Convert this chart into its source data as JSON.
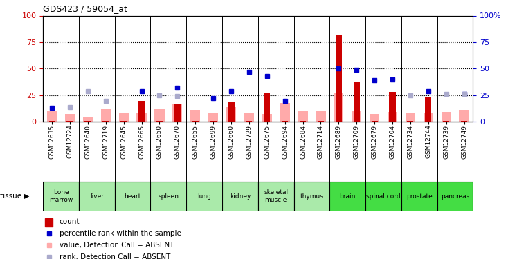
{
  "title": "GDS423 / 59054_at",
  "samples": [
    "GSM12635",
    "GSM12724",
    "GSM12640",
    "GSM12719",
    "GSM12645",
    "GSM12665",
    "GSM12650",
    "GSM12670",
    "GSM12655",
    "GSM12699",
    "GSM12660",
    "GSM12729",
    "GSM12675",
    "GSM12694",
    "GSM12684",
    "GSM12714",
    "GSM12689",
    "GSM12709",
    "GSM12679",
    "GSM12704",
    "GSM12734",
    "GSM12744",
    "GSM12739",
    "GSM12749"
  ],
  "tissues": [
    {
      "name": "bone\nmarrow",
      "span": [
        0,
        1
      ],
      "color": "#aaeaaa"
    },
    {
      "name": "liver",
      "span": [
        2,
        3
      ],
      "color": "#aaeaaa"
    },
    {
      "name": "heart",
      "span": [
        4,
        5
      ],
      "color": "#aaeaaa"
    },
    {
      "name": "spleen",
      "span": [
        6,
        7
      ],
      "color": "#aaeaaa"
    },
    {
      "name": "lung",
      "span": [
        8,
        9
      ],
      "color": "#aaeaaa"
    },
    {
      "name": "kidney",
      "span": [
        10,
        11
      ],
      "color": "#aaeaaa"
    },
    {
      "name": "skeletal\nmuscle",
      "span": [
        12,
        13
      ],
      "color": "#aaeaaa"
    },
    {
      "name": "thymus",
      "span": [
        14,
        15
      ],
      "color": "#aaeaaa"
    },
    {
      "name": "brain",
      "span": [
        16,
        17
      ],
      "color": "#44dd44"
    },
    {
      "name": "spinal cord",
      "span": [
        18,
        19
      ],
      "color": "#44dd44"
    },
    {
      "name": "prostate",
      "span": [
        20,
        21
      ],
      "color": "#44dd44"
    },
    {
      "name": "pancreas",
      "span": [
        22,
        23
      ],
      "color": "#44dd44"
    }
  ],
  "red_bars": [
    1,
    1,
    1,
    1,
    1,
    20,
    1,
    17,
    1,
    1,
    19,
    1,
    27,
    1,
    1,
    1,
    82,
    37,
    1,
    28,
    1,
    23,
    1,
    1
  ],
  "blue_squares": [
    13,
    null,
    null,
    null,
    null,
    29,
    null,
    32,
    null,
    22,
    29,
    47,
    43,
    20,
    null,
    null,
    50,
    49,
    39,
    40,
    null,
    29,
    null,
    26
  ],
  "pink_bars": [
    10,
    7,
    4,
    12,
    8,
    8,
    12,
    17,
    11,
    8,
    14,
    8,
    7,
    18,
    10,
    10,
    27,
    10,
    7,
    9,
    8,
    8,
    9,
    11
  ],
  "light_blue_squares": [
    null,
    14,
    29,
    20,
    null,
    null,
    25,
    24,
    null,
    null,
    null,
    null,
    null,
    null,
    null,
    null,
    null,
    null,
    null,
    null,
    25,
    null,
    26,
    26
  ],
  "dotted_lines": [
    25,
    50,
    75
  ],
  "bar_color": "#cc0000",
  "blue_color": "#0000cc",
  "pink_color": "#ffaaaa",
  "light_blue_color": "#aaaacc",
  "gray_bg": "#c8c8c8",
  "plot_bg": "#ffffff",
  "legend_items": [
    {
      "color": "#cc0000",
      "label": "count",
      "marker": "rect"
    },
    {
      "color": "#0000cc",
      "label": "percentile rank within the sample",
      "marker": "square"
    },
    {
      "color": "#ffaaaa",
      "label": "value, Detection Call = ABSENT",
      "marker": "square"
    },
    {
      "color": "#aaaacc",
      "label": "rank, Detection Call = ABSENT",
      "marker": "square"
    }
  ]
}
